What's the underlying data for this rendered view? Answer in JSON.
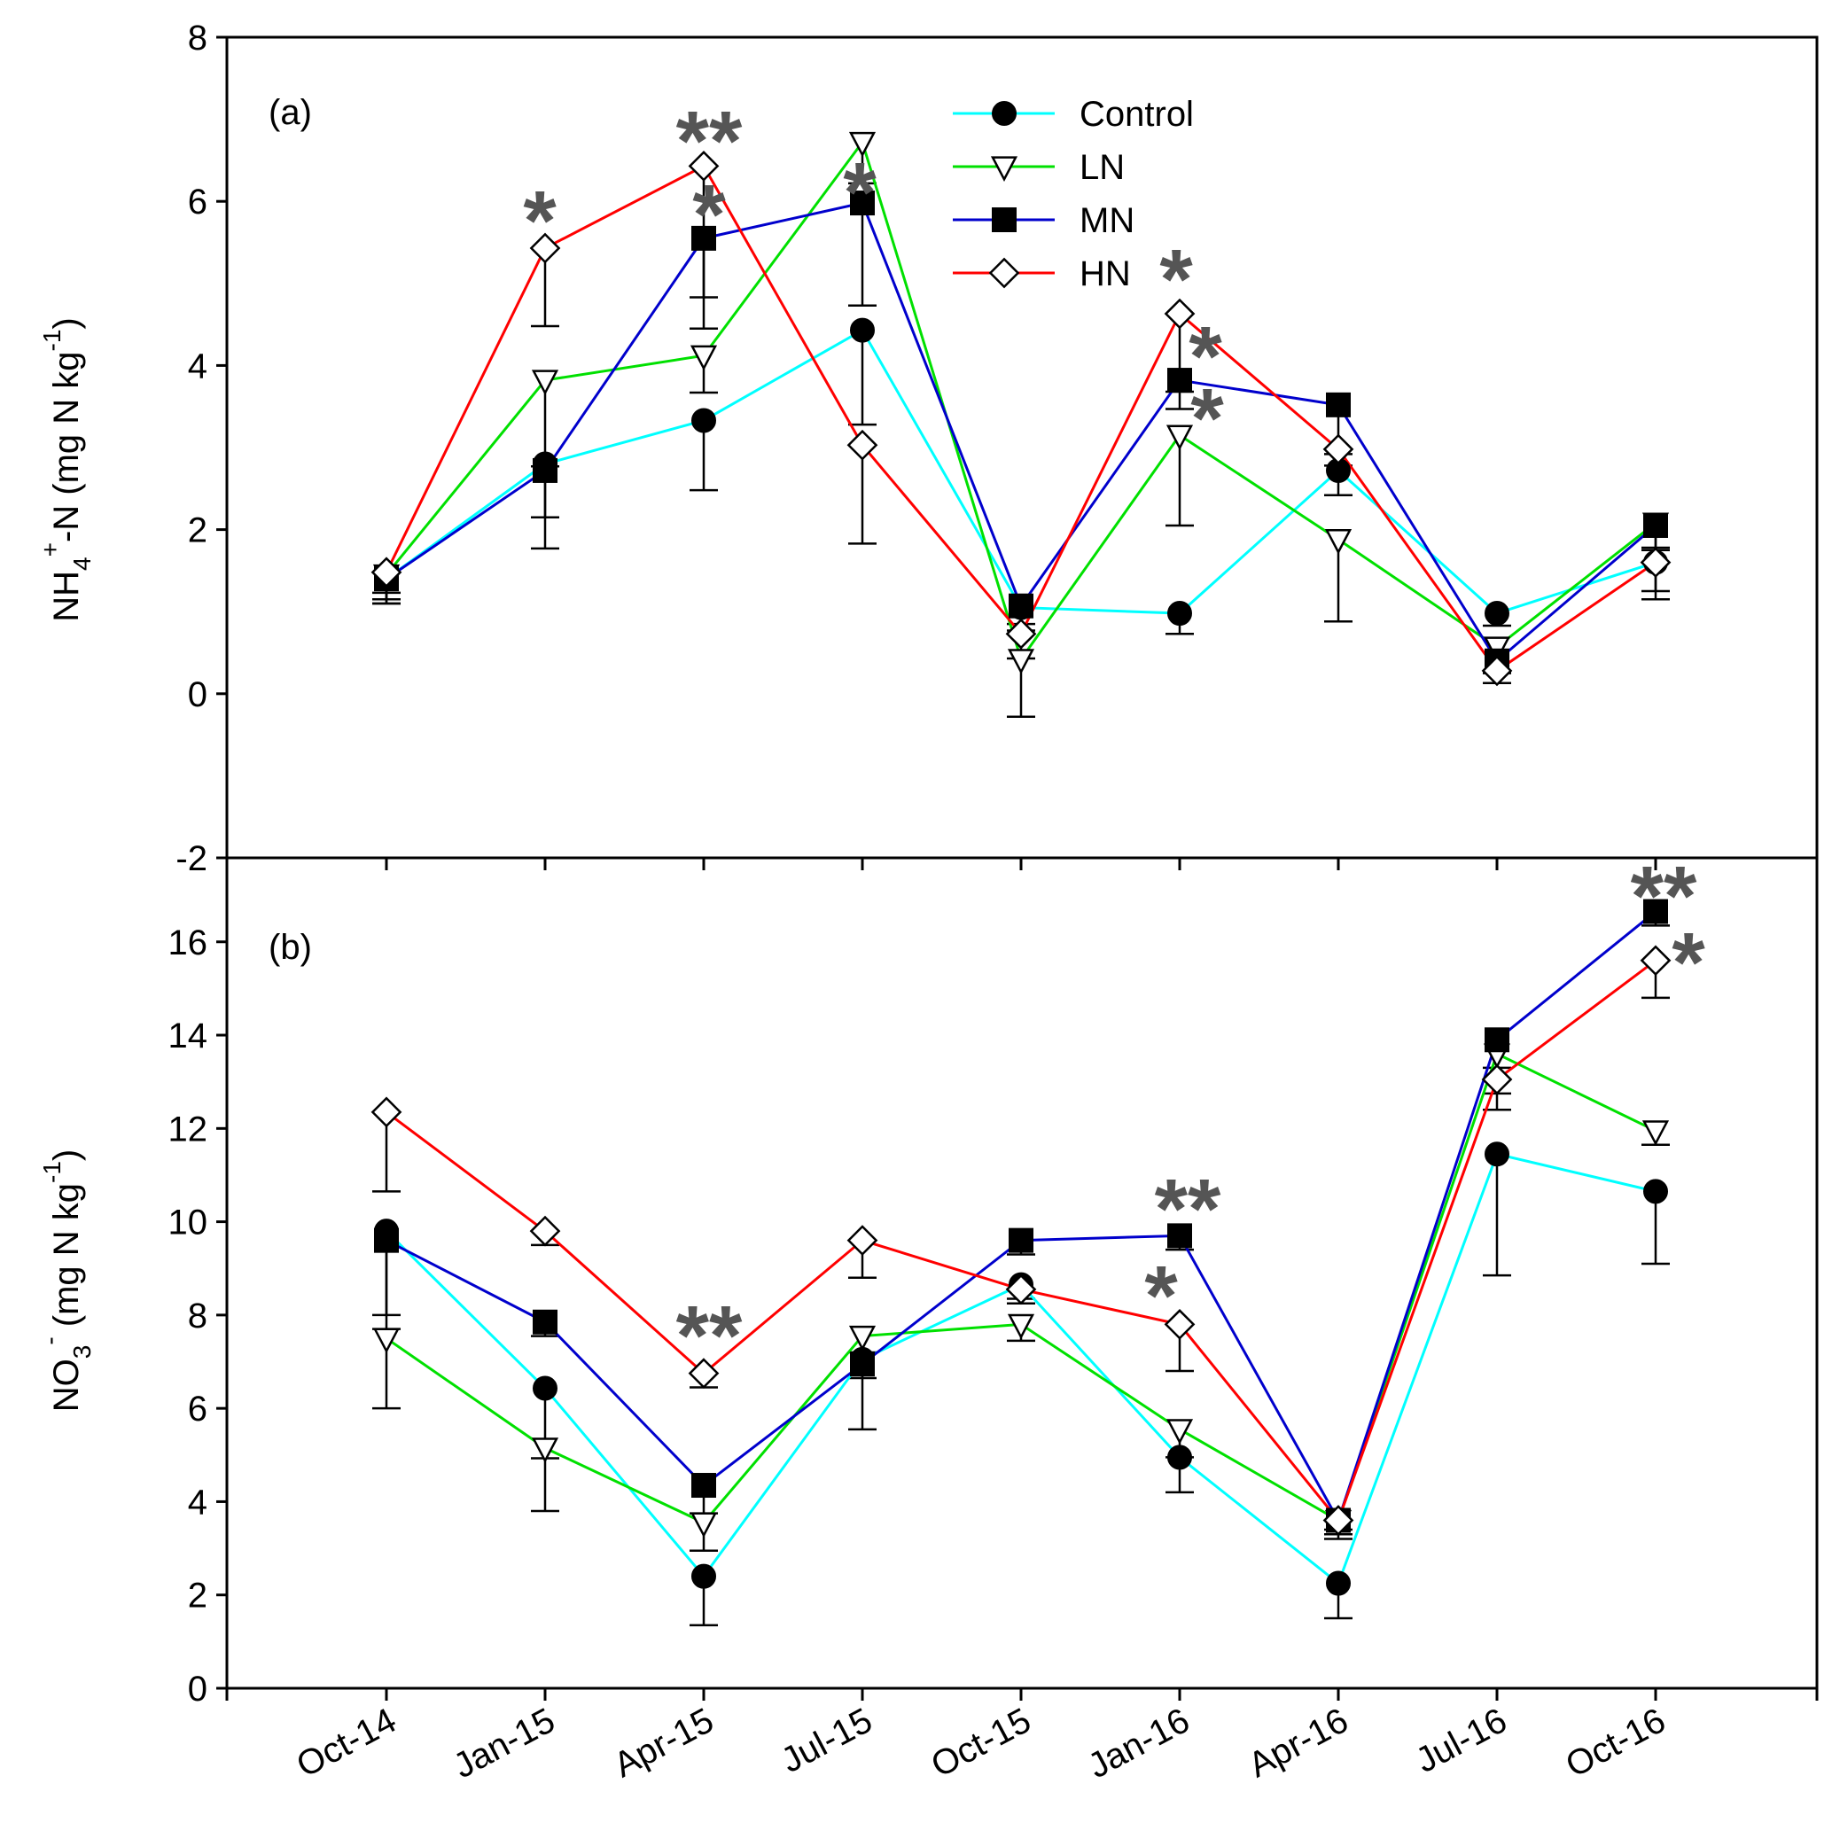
{
  "colors": {
    "Control": "#00FFFF",
    "LN": "#00E000",
    "MN": "#0000CC",
    "HN": "#FF0000",
    "star": "#555555"
  },
  "legend": [
    "Control",
    "LN",
    "MN",
    "HN"
  ],
  "x_labels": [
    "Oct-14",
    "Jan-15",
    "Apr-15",
    "Jul-15",
    "Oct-15",
    "Jan-16",
    "Apr-16",
    "Jul-16",
    "Oct-16"
  ],
  "panels": {
    "a": {
      "label": "(a)",
      "ylabel_main": "NH",
      "ylabel_sub": "4",
      "ylabel_sup": "+",
      "ylabel_rest": "-N (mg N kg",
      "ylabel_unit_sup": "-1",
      "ylabel_close": ")",
      "yticks": [
        "-2",
        "0",
        "2",
        "4",
        "6",
        "8"
      ]
    },
    "b": {
      "label": "(b)",
      "ylabel_main": "NO",
      "ylabel_sub": "3",
      "ylabel_sup": "-",
      "ylabel_rest": " (mg N kg",
      "ylabel_unit_sup": "-1",
      "ylabel_close": ")",
      "yticks": [
        "0",
        "2",
        "4",
        "6",
        "8",
        "10",
        "12",
        "14",
        "16"
      ]
    }
  },
  "chart_data": [
    {
      "type": "line",
      "panel": "(a)",
      "ylabel": "NH4+-N (mg N kg-1)",
      "ylim": [
        -2,
        8
      ],
      "x": [
        "Oct-14",
        "Jan-15",
        "Apr-15",
        "Jul-15",
        "Oct-15",
        "Jan-16",
        "Apr-16",
        "Jul-16",
        "Oct-16"
      ],
      "series": [
        {
          "name": "Control",
          "marker": "filled-circle",
          "values": [
            1.4,
            2.8,
            3.33,
            4.43,
            1.05,
            0.98,
            2.72,
            0.98,
            1.6
          ],
          "err": [
            0.3,
            0.65,
            0.85,
            1.15,
            0.2,
            0.25,
            0.3,
            0.15,
            0.35
          ]
        },
        {
          "name": "LN",
          "marker": "open-triangle-down",
          "values": [
            1.45,
            3.82,
            4.12,
            6.72,
            0.42,
            3.15,
            1.88,
            0.57,
            2.08
          ],
          "err": [
            0.3,
            1.05,
            0.45,
            0.5,
            0.7,
            1.1,
            1.0,
            0.3,
            0.3
          ]
        },
        {
          "name": "MN",
          "marker": "filled-square",
          "values": [
            1.4,
            2.72,
            5.55,
            5.98,
            1.07,
            3.82,
            3.52,
            0.4,
            2.05
          ],
          "err": [
            0.3,
            0.95,
            1.1,
            1.25,
            0.3,
            0.35,
            0.6,
            0.15,
            0.3
          ]
        },
        {
          "name": "HN",
          "marker": "open-diamond",
          "values": [
            1.48,
            5.43,
            6.43,
            3.03,
            0.73,
            4.63,
            2.98,
            0.28,
            1.6
          ],
          "err": [
            0.25,
            0.95,
            1.6,
            1.2,
            0.3,
            0.95,
            0.2,
            0.15,
            0.45
          ]
        }
      ],
      "significance": [
        {
          "x": "Jan-15",
          "text": "*"
        },
        {
          "x": "Apr-15",
          "text": "**"
        },
        {
          "x": "Apr-15",
          "text": "*"
        },
        {
          "x": "Jul-15",
          "text": "*"
        },
        {
          "x": "Jan-16",
          "text": "*"
        },
        {
          "x": "Jan-16",
          "text": "*"
        },
        {
          "x": "Jan-16",
          "text": "*"
        }
      ]
    },
    {
      "type": "line",
      "panel": "(b)",
      "ylabel": "NO3- (mg N kg-1)",
      "ylim": [
        0,
        17.8
      ],
      "x": [
        "Oct-14",
        "Jan-15",
        "Apr-15",
        "Jul-15",
        "Oct-15",
        "Jan-16",
        "Apr-16",
        "Jul-16",
        "Oct-16"
      ],
      "series": [
        {
          "name": "Control",
          "marker": "filled-circle",
          "values": [
            9.8,
            6.43,
            2.4,
            7.05,
            8.65,
            4.95,
            2.25,
            11.45,
            10.65
          ],
          "err": [
            1.8,
            1.5,
            1.05,
            1.5,
            0.3,
            0.75,
            0.75,
            2.6,
            1.55
          ]
        },
        {
          "name": "LN",
          "marker": "open-triangle-down",
          "values": [
            7.5,
            5.15,
            3.55,
            7.55,
            7.8,
            5.55,
            3.6,
            13.6,
            11.95
          ],
          "err": [
            1.5,
            1.35,
            0.6,
            0.35,
            0.35,
            0.6,
            0.4,
            0.3,
            0.3
          ]
        },
        {
          "name": "MN",
          "marker": "filled-square",
          "values": [
            9.6,
            7.85,
            4.35,
            6.95,
            9.6,
            9.7,
            3.6,
            13.9,
            16.65
          ],
          "err": [
            1.9,
            0.3,
            0.6,
            0.3,
            0.3,
            0.3,
            0.2,
            1.5,
            0.3
          ]
        },
        {
          "name": "HN",
          "marker": "open-diamond",
          "values": [
            12.35,
            9.8,
            6.75,
            9.6,
            8.55,
            7.8,
            3.6,
            13.05,
            15.6
          ],
          "err": [
            1.7,
            0.3,
            0.3,
            0.8,
            0.3,
            1.0,
            0.3,
            0.3,
            0.8
          ]
        }
      ],
      "significance": [
        {
          "x": "Apr-15",
          "text": "**"
        },
        {
          "x": "Jan-16",
          "text": "**"
        },
        {
          "x": "Jan-16",
          "text": "*"
        },
        {
          "x": "Oct-16",
          "text": "**"
        },
        {
          "x": "Oct-16",
          "text": "*"
        }
      ]
    }
  ]
}
